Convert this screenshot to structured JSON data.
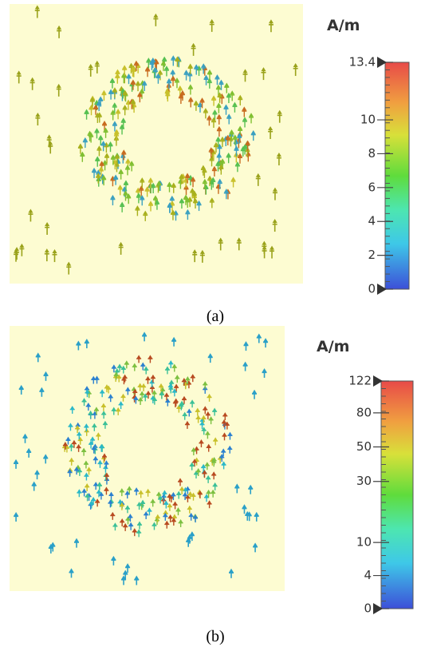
{
  "panels": [
    {
      "unit": "A/m",
      "scale": "linear",
      "colorbar_ticks": [
        13.4,
        10,
        8,
        6,
        4,
        2,
        0
      ],
      "caption": "(a)"
    },
    {
      "unit": "A/m",
      "scale": "log",
      "colorbar_ticks": [
        122,
        80,
        50,
        30,
        10,
        4,
        0
      ],
      "caption": "(b)"
    }
  ]
}
